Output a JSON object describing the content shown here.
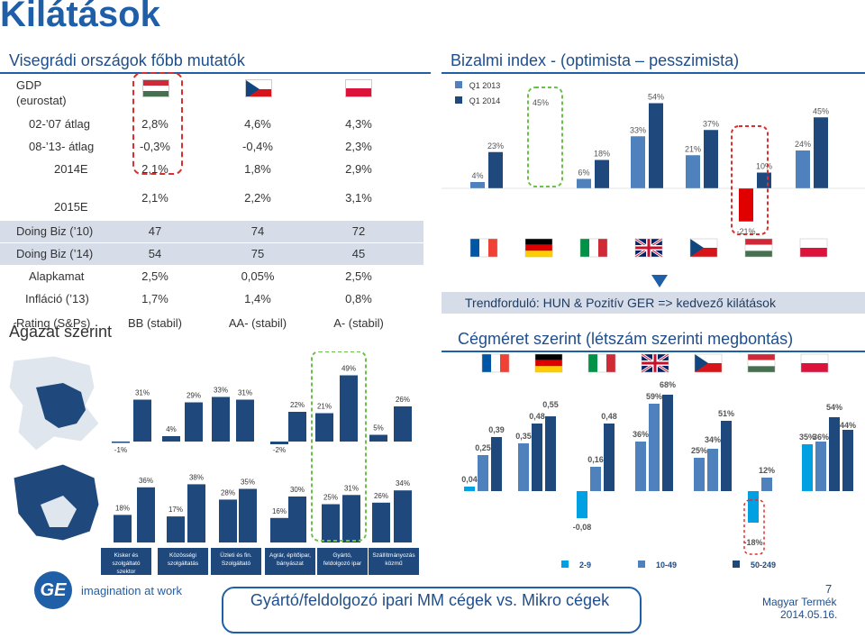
{
  "page": {
    "title": "Kilátások",
    "left_heading": "Visegrádi országok főbb mutatók",
    "right_heading": "Bizalmi index - (optimista – pesszimista)",
    "trend_text": "Trendforduló: HUN & Pozitív GER => kedvező kilátások",
    "size_heading": "Cégméret szerint (létszám szerinti megbontás)",
    "sector_heading": "Ágazat szerint",
    "footer_text": "Gyártó/feldolgozó ipari MM cégek vs. Mikro cégek",
    "page_number": "7",
    "author": "Magyar Termék",
    "date": "2014.05.16.",
    "logo_text": "imagination at work",
    "logo_mark": "GE"
  },
  "colors": {
    "title_blue": "#1f5fa8",
    "q1_2013": "#4f81bd",
    "q1_2014": "#1f497d",
    "red_bar": "#e00000",
    "size_2_9": "#00a0e3",
    "size_10_49": "#4f81bd",
    "size_50_249": "#1f497d",
    "sector_bar": "#1f497d"
  },
  "indicators": {
    "gdp_label_1": "GDP",
    "gdp_label_2": "(eurostat)",
    "rows": [
      {
        "label": "02-’07 átlag",
        "hu": "2,8%",
        "cz": "4,6%",
        "pl": "4,3%"
      },
      {
        "label": "08-’13- átlag",
        "hu": "-0,3%",
        "cz": "-0,4%",
        "pl": "2,3%"
      },
      {
        "label": "2014E",
        "hu": "2,1%",
        "cz": "1,8%",
        "pl": "2,9%"
      },
      {
        "label": "2015E",
        "hu": "2,1%",
        "cz": "2,2%",
        "pl": "3,1%"
      },
      {
        "label": "Doing Biz (’10)",
        "hu": "47",
        "cz": "74",
        "pl": "72"
      },
      {
        "label": "Doing Biz (’14)",
        "hu": "54",
        "cz": "75",
        "pl": "45"
      },
      {
        "label": "Alapkamat",
        "hu": "2,5%",
        "cz": "0,05%",
        "pl": "2,5%"
      },
      {
        "label": "Infláció (’13)",
        "hu": "1,7%",
        "cz": "1,4%",
        "pl": "0,8%"
      },
      {
        "label": "Rating (S&Ps)",
        "hu": "BB (stabil)",
        "cz": "AA- (stabil)",
        "pl": "A- (stabil)"
      }
    ],
    "flags": [
      "hungary-flag",
      "czech-flag",
      "poland-flag"
    ]
  },
  "chart_data": [
    {
      "type": "bar",
      "title": "Bizalmi index - (optimista – pesszimista)",
      "categories": [
        "France",
        "Germany",
        "Italy",
        "United Kingdom",
        "Czech Republic",
        "Hungary",
        "Poland"
      ],
      "series": [
        {
          "name": "Q1 2013",
          "values": [
            4,
            6,
            33,
            21,
            -21,
            24,
            null
          ],
          "labels": [
            "4%",
            "6%",
            "33%",
            "21%",
            "-21%",
            "24%",
            ""
          ]
        },
        {
          "name": "Q1 2014",
          "values": [
            23,
            18,
            54,
            37,
            10,
            45,
            null
          ],
          "labels": [
            "23%",
            "18%",
            "54%",
            "37%",
            "10%",
            "45%",
            ""
          ]
        }
      ],
      "top_labels": [
        "45%"
      ],
      "legend": [
        "Q1 2013",
        "Q1 2014"
      ],
      "legend_position": "top-left"
    },
    {
      "type": "bar",
      "title": "Cégméret szerint (létszám szerinti megbontás)",
      "categories": [
        "France",
        "Germany",
        "Italy",
        "United Kingdom",
        "Czech Republic",
        "Hungary",
        "Poland"
      ],
      "series": [
        {
          "name": "2-9",
          "values": [
            0.04,
            null,
            -0.08,
            null,
            null,
            -18,
            null
          ],
          "labels": [
            "0,04",
            "",
            "-0,08",
            "",
            "",
            "-18%",
            ""
          ]
        },
        {
          "name": "10-49",
          "values": [
            0.25,
            0.35,
            0.16,
            36,
            25,
            12,
            35
          ],
          "labels": [
            "0,25",
            "0,35",
            "0,16",
            "36%",
            "25%",
            "12%",
            "35%"
          ]
        },
        {
          "name": "50-249",
          "values": [
            0.39,
            0.48,
            0.48,
            59,
            34,
            null,
            36
          ],
          "labels": [
            "0,39",
            "0,48",
            "0,48",
            "59%",
            "34%",
            "",
            "36%"
          ]
        }
      ],
      "extra_labels": [
        "0,55",
        "68%",
        "51%",
        "54%",
        "44%"
      ],
      "legend": [
        "2-9",
        "10-49",
        "50-249"
      ],
      "legend_position": "bottom"
    },
    {
      "type": "bar",
      "title": "Ágazat szerint",
      "categories": [
        "Kisker és szolgáltató szektor",
        "Közösségi szolgáltatás",
        "Üzleti és fin. Szolgáltató",
        "Agrár, építőipar, bányászat",
        "Gyártó, feldolgozó ipar",
        "Szállítmányozás közmű"
      ],
      "top_row": {
        "labels": [
          "31%",
          "-1%",
          "4%",
          "29%",
          "33%",
          "31%",
          "-2%",
          "22%",
          "21%",
          "49%",
          "5%",
          "26%"
        ]
      },
      "bottom_row": {
        "labels": [
          "18%",
          "36%",
          "17%",
          "38%",
          "28%",
          "35%",
          "16%",
          "30%",
          "25%",
          "31%",
          "26%",
          "34%"
        ]
      }
    }
  ]
}
